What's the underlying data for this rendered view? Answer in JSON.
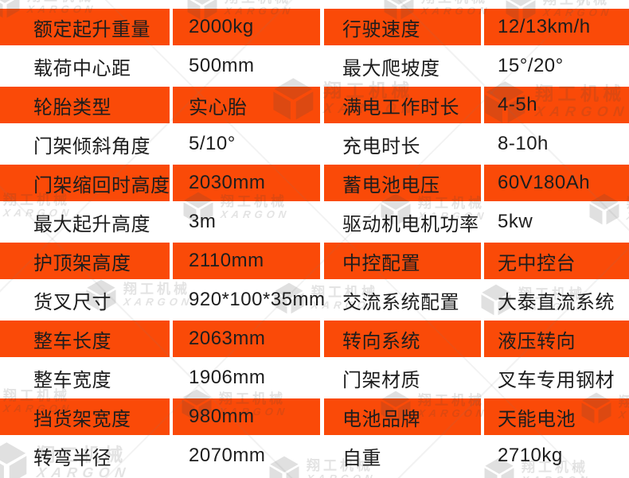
{
  "colors": {
    "orange": "#fa4a08",
    "text": "#1d1d1d",
    "page_bg": "#ffffff"
  },
  "watermark": {
    "cn": "翔工机械",
    "en": "XARGON",
    "logo_icon": "hexagon-cube-logo"
  },
  "table": {
    "rows": [
      {
        "variant": "orange",
        "cells": [
          "额定起升重量",
          "2000kg",
          "行驶速度",
          "12/13km/h"
        ]
      },
      {
        "variant": "white",
        "cells": [
          "载荷中心距",
          "500mm",
          "最大爬坡度",
          "15°/20°"
        ]
      },
      {
        "variant": "orange",
        "cells": [
          "轮胎类型",
          "实心胎",
          "满电工作时长",
          "4-5h"
        ]
      },
      {
        "variant": "white",
        "cells": [
          "门架倾斜角度",
          "5/10°",
          "充电时长",
          "8-10h"
        ]
      },
      {
        "variant": "orange",
        "cells": [
          "门架缩回时高度",
          "2030mm",
          "蓄电池电压",
          "60V180Ah"
        ]
      },
      {
        "variant": "white",
        "cells": [
          "最大起升高度",
          "3m",
          "驱动机电机功率",
          "5kw"
        ]
      },
      {
        "variant": "orange",
        "cells": [
          "护顶架高度",
          "2110mm",
          "中控配置",
          "无中控台"
        ]
      },
      {
        "variant": "white",
        "cells": [
          "货叉尺寸",
          "920*100*35mm",
          "交流系统配置",
          "大泰直流系统"
        ]
      },
      {
        "variant": "orange",
        "cells": [
          "整车长度",
          "2063mm",
          "转向系统",
          "液压转向"
        ]
      },
      {
        "variant": "white",
        "cells": [
          "整车宽度",
          "1906mm",
          "门架材质",
          "叉车专用钢材"
        ]
      },
      {
        "variant": "orange",
        "cells": [
          "挡货架宽度",
          "980mm",
          "电池品牌",
          "天能电池"
        ]
      },
      {
        "variant": "white",
        "cells": [
          "转弯半径",
          "2070mm",
          "自重",
          "2710kg"
        ]
      }
    ]
  }
}
